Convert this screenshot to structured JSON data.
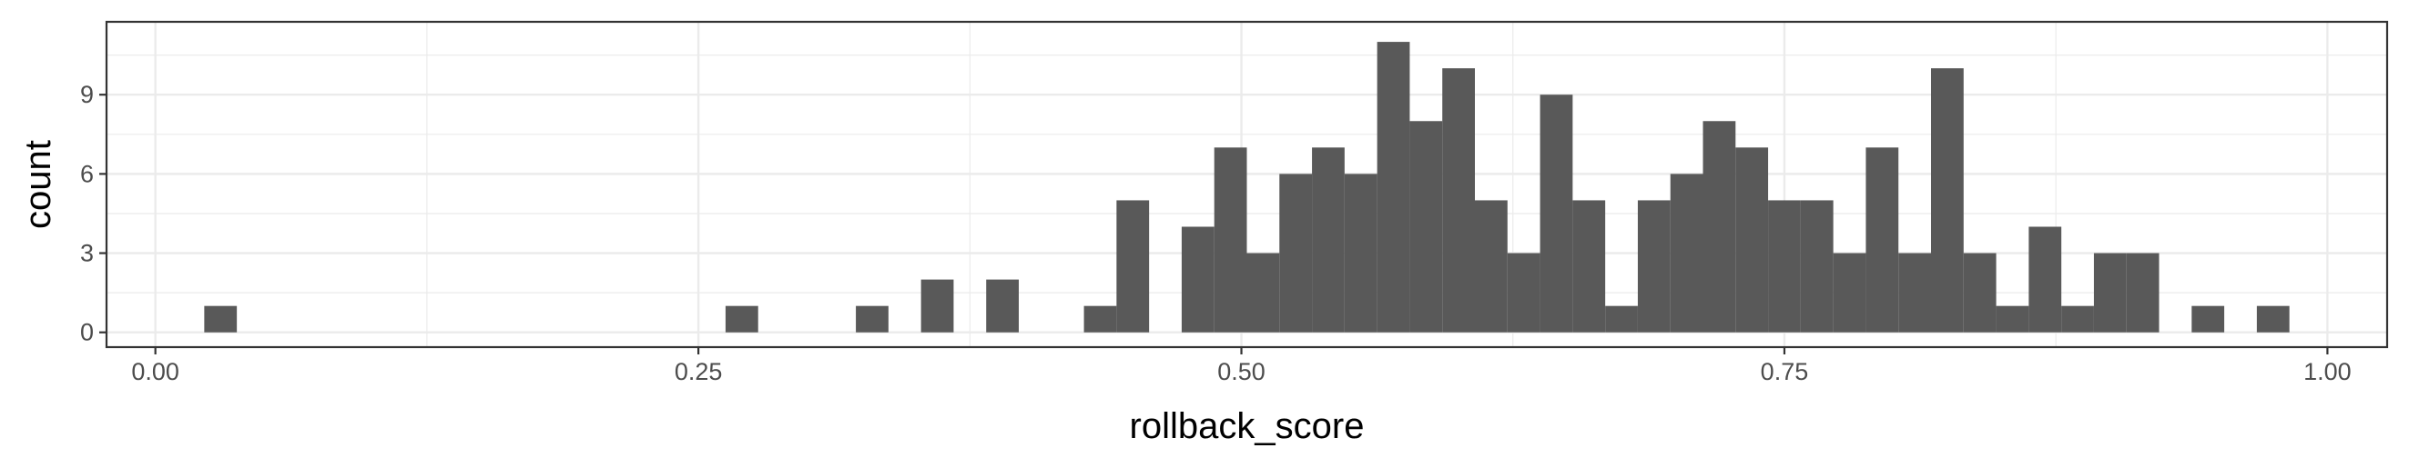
{
  "chart_data": {
    "type": "bar",
    "subtype": "histogram",
    "title": "",
    "xlabel": "rollback_score",
    "ylabel": "count",
    "xlim": [
      -0.0225,
      1.0275
    ],
    "ylim": [
      -0.56,
      11.76
    ],
    "x_ticks": [
      {
        "value": 0.0,
        "label": "0.00"
      },
      {
        "value": 0.25,
        "label": "0.25"
      },
      {
        "value": 0.5,
        "label": "0.50"
      },
      {
        "value": 0.75,
        "label": "0.75"
      },
      {
        "value": 1.0,
        "label": "1.00"
      }
    ],
    "y_ticks": [
      {
        "value": 0,
        "label": "0"
      },
      {
        "value": 3,
        "label": "3"
      },
      {
        "value": 6,
        "label": "6"
      },
      {
        "value": 9,
        "label": "9"
      }
    ],
    "grid": true,
    "bar_color": "#595959",
    "bin_width": 0.015,
    "bins": [
      {
        "x0": 0.0225,
        "x1": 0.0375,
        "count": 1
      },
      {
        "x0": 0.2625,
        "x1": 0.2775,
        "count": 1
      },
      {
        "x0": 0.3225,
        "x1": 0.3375,
        "count": 1
      },
      {
        "x0": 0.3525,
        "x1": 0.3675,
        "count": 2
      },
      {
        "x0": 0.3825,
        "x1": 0.3975,
        "count": 2
      },
      {
        "x0": 0.4275,
        "x1": 0.4425,
        "count": 1
      },
      {
        "x0": 0.4425,
        "x1": 0.4575,
        "count": 5
      },
      {
        "x0": 0.4725,
        "x1": 0.4875,
        "count": 4
      },
      {
        "x0": 0.4875,
        "x1": 0.5025,
        "count": 7
      },
      {
        "x0": 0.5025,
        "x1": 0.5175,
        "count": 3
      },
      {
        "x0": 0.5175,
        "x1": 0.5325,
        "count": 6
      },
      {
        "x0": 0.5325,
        "x1": 0.5475,
        "count": 7
      },
      {
        "x0": 0.5475,
        "x1": 0.5625,
        "count": 6
      },
      {
        "x0": 0.5625,
        "x1": 0.5775,
        "count": 11
      },
      {
        "x0": 0.5775,
        "x1": 0.5925,
        "count": 8
      },
      {
        "x0": 0.5925,
        "x1": 0.6075,
        "count": 10
      },
      {
        "x0": 0.6075,
        "x1": 0.6225,
        "count": 5
      },
      {
        "x0": 0.6225,
        "x1": 0.6375,
        "count": 3
      },
      {
        "x0": 0.6375,
        "x1": 0.6525,
        "count": 9
      },
      {
        "x0": 0.6525,
        "x1": 0.6675,
        "count": 5
      },
      {
        "x0": 0.6675,
        "x1": 0.6825,
        "count": 1
      },
      {
        "x0": 0.6825,
        "x1": 0.6975,
        "count": 5
      },
      {
        "x0": 0.6975,
        "x1": 0.7125,
        "count": 6
      },
      {
        "x0": 0.7125,
        "x1": 0.7275,
        "count": 8
      },
      {
        "x0": 0.7275,
        "x1": 0.7425,
        "count": 7
      },
      {
        "x0": 0.7425,
        "x1": 0.7575,
        "count": 5
      },
      {
        "x0": 0.7575,
        "x1": 0.7725,
        "count": 5
      },
      {
        "x0": 0.7725,
        "x1": 0.7875,
        "count": 3
      },
      {
        "x0": 0.7875,
        "x1": 0.8025,
        "count": 7
      },
      {
        "x0": 0.8025,
        "x1": 0.8175,
        "count": 3
      },
      {
        "x0": 0.8175,
        "x1": 0.8325,
        "count": 10
      },
      {
        "x0": 0.8325,
        "x1": 0.8475,
        "count": 3
      },
      {
        "x0": 0.8475,
        "x1": 0.8625,
        "count": 1
      },
      {
        "x0": 0.8625,
        "x1": 0.8775,
        "count": 4
      },
      {
        "x0": 0.8775,
        "x1": 0.8925,
        "count": 1
      },
      {
        "x0": 0.8925,
        "x1": 0.9075,
        "count": 3
      },
      {
        "x0": 0.9075,
        "x1": 0.9225,
        "count": 3
      },
      {
        "x0": 0.9375,
        "x1": 0.9525,
        "count": 1
      },
      {
        "x0": 0.9675,
        "x1": 0.9825,
        "count": 1
      }
    ]
  }
}
